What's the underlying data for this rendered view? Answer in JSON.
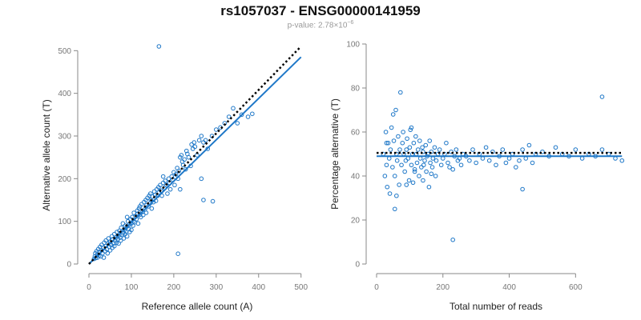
{
  "title": "rs1057037 - ENSG00000141959",
  "subtitle": {
    "prefix": "p-value: ",
    "mantissa": "2.78",
    "times": "×10",
    "exponent": "−6"
  },
  "colors": {
    "points": "#1f78c8",
    "fit": "#1f78c8",
    "reference": "#000000",
    "axis": "#888888"
  },
  "chart_data": [
    {
      "type": "scatter",
      "title": "",
      "xlabel": "Reference allele count (A)",
      "ylabel": "Alternative allele count (T)",
      "xlim": [
        0,
        510
      ],
      "ylim": [
        0,
        510
      ],
      "xticks": [
        0,
        100,
        200,
        300,
        400,
        500
      ],
      "yticks": [
        0,
        100,
        200,
        300,
        400,
        500
      ],
      "reference_line": {
        "style": "dotted",
        "x": [
          0,
          500
        ],
        "y": [
          0,
          510
        ]
      },
      "fit_line": {
        "style": "solid",
        "x": [
          0,
          500
        ],
        "y": [
          0,
          485
        ]
      },
      "points": [
        [
          12,
          12
        ],
        [
          14,
          18
        ],
        [
          15,
          25
        ],
        [
          16,
          14
        ],
        [
          18,
          30
        ],
        [
          20,
          22
        ],
        [
          20,
          15
        ],
        [
          22,
          35
        ],
        [
          24,
          20
        ],
        [
          25,
          28
        ],
        [
          26,
          40
        ],
        [
          28,
          18
        ],
        [
          30,
          32
        ],
        [
          30,
          45
        ],
        [
          32,
          25
        ],
        [
          34,
          38
        ],
        [
          35,
          15
        ],
        [
          36,
          50
        ],
        [
          38,
          30
        ],
        [
          40,
          42
        ],
        [
          40,
          55
        ],
        [
          42,
          35
        ],
        [
          44,
          25
        ],
        [
          45,
          48
        ],
        [
          46,
          60
        ],
        [
          48,
          40
        ],
        [
          50,
          52
        ],
        [
          50,
          32
        ],
        [
          52,
          45
        ],
        [
          54,
          65
        ],
        [
          55,
          38
        ],
        [
          56,
          58
        ],
        [
          58,
          48
        ],
        [
          60,
          70
        ],
        [
          60,
          42
        ],
        [
          62,
          55
        ],
        [
          64,
          62
        ],
        [
          65,
          50
        ],
        [
          66,
          75
        ],
        [
          68,
          58
        ],
        [
          70,
          66
        ],
        [
          70,
          48
        ],
        [
          72,
          78
        ],
        [
          74,
          62
        ],
        [
          75,
          55
        ],
        [
          76,
          85
        ],
        [
          78,
          68
        ],
        [
          80,
          72
        ],
        [
          80,
          95
        ],
        [
          82,
          60
        ],
        [
          84,
          80
        ],
        [
          85,
          70
        ],
        [
          86,
          90
        ],
        [
          88,
          76
        ],
        [
          90,
          88
        ],
        [
          90,
          65
        ],
        [
          92,
          100
        ],
        [
          94,
          82
        ],
        [
          95,
          92
        ],
        [
          96,
          75
        ],
        [
          98,
          105
        ],
        [
          100,
          95
        ],
        [
          100,
          80
        ],
        [
          102,
          110
        ],
        [
          104,
          90
        ],
        [
          105,
          100
        ],
        [
          106,
          120
        ],
        [
          108,
          98
        ],
        [
          110,
          112
        ],
        [
          112,
          105
        ],
        [
          114,
          125
        ],
        [
          115,
          118
        ],
        [
          116,
          95
        ],
        [
          118,
          130
        ],
        [
          120,
          115
        ],
        [
          120,
          135
        ],
        [
          122,
          110
        ],
        [
          124,
          140
        ],
        [
          126,
          122
        ],
        [
          128,
          115
        ],
        [
          130,
          145
        ],
        [
          132,
          128
        ],
        [
          134,
          150
        ],
        [
          135,
          120
        ],
        [
          136,
          138
        ],
        [
          138,
          155
        ],
        [
          140,
          135
        ],
        [
          142,
          160
        ],
        [
          144,
          142
        ],
        [
          145,
          165
        ],
        [
          146,
          150
        ],
        [
          148,
          130
        ],
        [
          150,
          158
        ],
        [
          152,
          145
        ],
        [
          154,
          170
        ],
        [
          156,
          162
        ],
        [
          158,
          148
        ],
        [
          160,
          175
        ],
        [
          162,
          160
        ],
        [
          164,
          180
        ],
        [
          165,
          168
        ],
        [
          168,
          185
        ],
        [
          170,
          172
        ],
        [
          172,
          160
        ],
        [
          175,
          190
        ],
        [
          178,
          178
        ],
        [
          180,
          195
        ],
        [
          182,
          185
        ],
        [
          185,
          165
        ],
        [
          188,
          200
        ],
        [
          190,
          190
        ],
        [
          192,
          175
        ],
        [
          195,
          205
        ],
        [
          198,
          198
        ],
        [
          200,
          215
        ],
        [
          202,
          185
        ],
        [
          205,
          210
        ],
        [
          208,
          225
        ],
        [
          210,
          200
        ],
        [
          212,
          218
        ],
        [
          215,
          250
        ],
        [
          218,
          255
        ],
        [
          220,
          240
        ],
        [
          222,
          232
        ],
        [
          225,
          245
        ],
        [
          228,
          222
        ],
        [
          230,
          265
        ],
        [
          232,
          258
        ],
        [
          235,
          250
        ],
        [
          240,
          230
        ],
        [
          242,
          280
        ],
        [
          245,
          270
        ],
        [
          248,
          285
        ],
        [
          250,
          275
        ],
        [
          255,
          255
        ],
        [
          260,
          290
        ],
        [
          265,
          300
        ],
        [
          270,
          285
        ],
        [
          275,
          290
        ],
        [
          280,
          270
        ],
        [
          290,
          300
        ],
        [
          300,
          315
        ],
        [
          310,
          320
        ],
        [
          320,
          330
        ],
        [
          330,
          345
        ],
        [
          340,
          365
        ],
        [
          350,
          330
        ],
        [
          360,
          350
        ],
        [
          375,
          345
        ],
        [
          385,
          352
        ],
        [
          165,
          510
        ],
        [
          210,
          24
        ],
        [
          292,
          147
        ],
        [
          215,
          175
        ],
        [
          270,
          150
        ],
        [
          265,
          200
        ],
        [
          90,
          110
        ],
        [
          175,
          205
        ]
      ]
    },
    {
      "type": "scatter",
      "title": "",
      "xlabel": "Total number of reads",
      "ylabel": "Percentage alternative (T)",
      "xlim": [
        0,
        720
      ],
      "ylim": [
        0,
        100
      ],
      "xticks": [
        0,
        200,
        400,
        600
      ],
      "yticks": [
        0,
        20,
        40,
        60,
        80,
        100
      ],
      "reference_line": {
        "style": "dotted",
        "x": [
          0,
          740
        ],
        "y": [
          50.5,
          50.5
        ]
      },
      "fit_line": {
        "style": "solid",
        "x": [
          0,
          740
        ],
        "y": [
          49,
          49
        ]
      },
      "points": [
        [
          20,
          50
        ],
        [
          25,
          40
        ],
        [
          28,
          60
        ],
        [
          30,
          45
        ],
        [
          32,
          35
        ],
        [
          35,
          55
        ],
        [
          38,
          48
        ],
        [
          40,
          32
        ],
        [
          42,
          52
        ],
        [
          45,
          62
        ],
        [
          48,
          44
        ],
        [
          50,
          68
        ],
        [
          52,
          56
        ],
        [
          55,
          40
        ],
        [
          58,
          70
        ],
        [
          60,
          50
        ],
        [
          62,
          47
        ],
        [
          65,
          58
        ],
        [
          68,
          36
        ],
        [
          70,
          52
        ],
        [
          72,
          78
        ],
        [
          75,
          45
        ],
        [
          78,
          55
        ],
        [
          80,
          60
        ],
        [
          82,
          50
        ],
        [
          85,
          42
        ],
        [
          88,
          47
        ],
        [
          90,
          52
        ],
        [
          92,
          57
        ],
        [
          95,
          48
        ],
        [
          98,
          38
        ],
        [
          100,
          53
        ],
        [
          102,
          61
        ],
        [
          105,
          45
        ],
        [
          108,
          50
        ],
        [
          110,
          37
        ],
        [
          112,
          55
        ],
        [
          115,
          43
        ],
        [
          118,
          58
        ],
        [
          120,
          50
        ],
        [
          122,
          46
        ],
        [
          125,
          52
        ],
        [
          128,
          40
        ],
        [
          130,
          56
        ],
        [
          132,
          48
        ],
        [
          135,
          44
        ],
        [
          138,
          53
        ],
        [
          140,
          51
        ],
        [
          142,
          45
        ],
        [
          145,
          47
        ],
        [
          148,
          54
        ],
        [
          150,
          42
        ],
        [
          152,
          49
        ],
        [
          155,
          50
        ],
        [
          158,
          35
        ],
        [
          160,
          56
        ],
        [
          162,
          46
        ],
        [
          165,
          51
        ],
        [
          168,
          44
        ],
        [
          170,
          48
        ],
        [
          175,
          53
        ],
        [
          178,
          40
        ],
        [
          180,
          47
        ],
        [
          185,
          50
        ],
        [
          190,
          52
        ],
        [
          195,
          45
        ],
        [
          200,
          48
        ],
        [
          205,
          50
        ],
        [
          210,
          55
        ],
        [
          215,
          46
        ],
        [
          220,
          44
        ],
        [
          225,
          51
        ],
        [
          230,
          43
        ],
        [
          235,
          49
        ],
        [
          240,
          52
        ],
        [
          245,
          47
        ],
        [
          250,
          48
        ],
        [
          255,
          45
        ],
        [
          260,
          50
        ],
        [
          270,
          49
        ],
        [
          280,
          47
        ],
        [
          290,
          52
        ],
        [
          300,
          46
        ],
        [
          310,
          50
        ],
        [
          320,
          48
        ],
        [
          330,
          53
        ],
        [
          340,
          47
        ],
        [
          350,
          51
        ],
        [
          360,
          45
        ],
        [
          370,
          49
        ],
        [
          380,
          52
        ],
        [
          390,
          46
        ],
        [
          400,
          48
        ],
        [
          410,
          50
        ],
        [
          420,
          44
        ],
        [
          430,
          47
        ],
        [
          440,
          52
        ],
        [
          450,
          48
        ],
        [
          460,
          54
        ],
        [
          470,
          46
        ],
        [
          480,
          50
        ],
        [
          500,
          51
        ],
        [
          520,
          49
        ],
        [
          540,
          53
        ],
        [
          560,
          50
        ],
        [
          580,
          49
        ],
        [
          600,
          52
        ],
        [
          620,
          48
        ],
        [
          640,
          50
        ],
        [
          660,
          49
        ],
        [
          680,
          52
        ],
        [
          700,
          50
        ],
        [
          720,
          48
        ],
        [
          740,
          47
        ],
        [
          680,
          76
        ],
        [
          230,
          11
        ],
        [
          440,
          34
        ],
        [
          30,
          55
        ],
        [
          55,
          25
        ],
        [
          90,
          36
        ],
        [
          140,
          38
        ],
        [
          60,
          31
        ],
        [
          105,
          62
        ],
        [
          115,
          42
        ],
        [
          165,
          41
        ]
      ]
    }
  ]
}
